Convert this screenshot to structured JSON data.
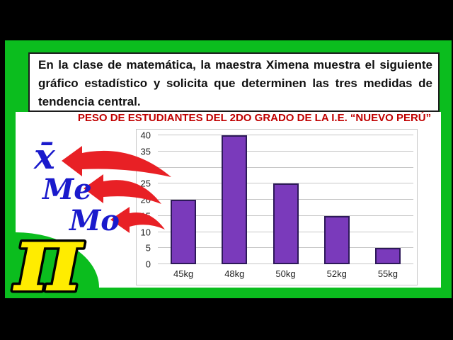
{
  "problem": {
    "text": "En la clase de matemática, la maestra Ximena muestra el siguiente gráfico estadístico y solicita que determinen las tres medidas de tendencia central."
  },
  "symbols": {
    "mean": "x̄",
    "median": "Me",
    "mode": "Mo"
  },
  "logo": {
    "pi": "π"
  },
  "chart_data": {
    "type": "bar",
    "title": "PESO DE ESTUDIANTES DEL 2DO GRADO DE LA I.E. “NUEVO PERÚ”",
    "categories": [
      "45kg",
      "48kg",
      "50kg",
      "52kg",
      "55kg"
    ],
    "values": [
      20,
      40,
      25,
      15,
      5
    ],
    "xlabel": "",
    "ylabel": "",
    "ylim": [
      0,
      40
    ],
    "ytick_step": 5,
    "grid": true,
    "legend": "none",
    "bar_color": "#7A3ABB",
    "bar_border_color": "#2D1959"
  },
  "colors": {
    "green": "#0BBD1E",
    "title_red": "#C00000",
    "arrow_red": "#E82025",
    "symbol_blue": "#1A1ACC",
    "grid": "#C6C6C6",
    "pi_yellow": "#FFEC00"
  }
}
